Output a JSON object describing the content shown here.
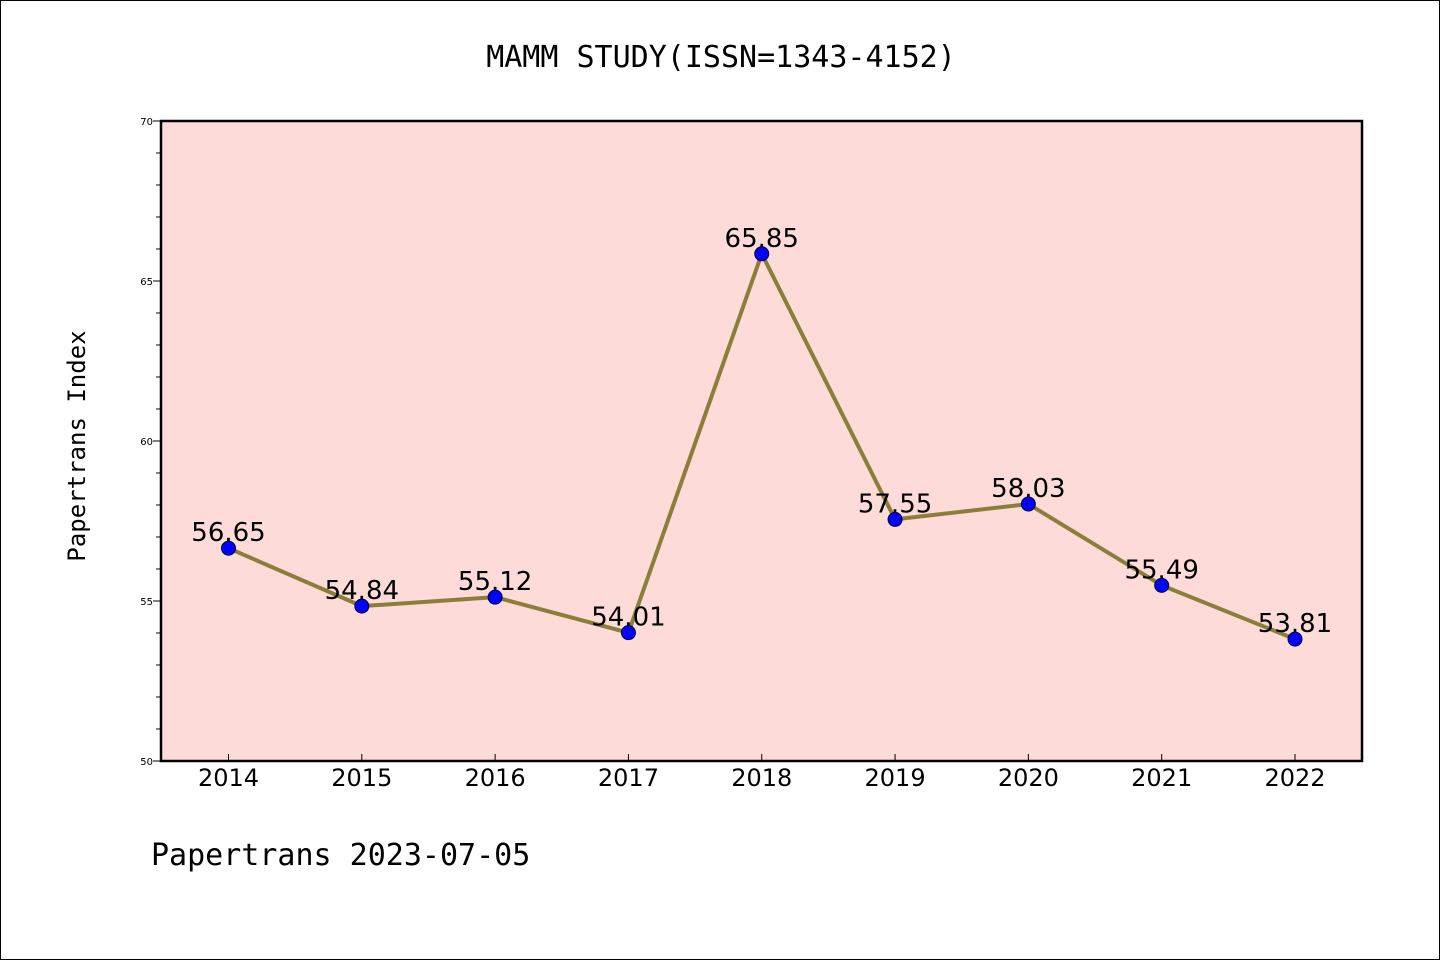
{
  "title": "MAMM STUDY(ISSN=1343-4152)",
  "footer": "Papertrans 2023-07-05",
  "colors": {
    "plot_background": "#fddbd8",
    "line": "#8b7d3a",
    "marker": "#0000ff",
    "marker_edge": "#000033"
  },
  "chart_data": {
    "type": "line",
    "title": "MAMM STUDY(ISSN=1343-4152)",
    "xlabel": "",
    "ylabel": "Papertrans Index",
    "categories": [
      "2014",
      "2015",
      "2016",
      "2017",
      "2018",
      "2019",
      "2020",
      "2021",
      "2022"
    ],
    "series": [
      {
        "values": [
          56.65,
          54.84,
          55.12,
          54.01,
          65.85,
          57.55,
          58.03,
          55.49,
          53.81
        ],
        "labels": [
          "56.65",
          "54.84",
          "55.12",
          "54.01",
          "65.85",
          "57.55",
          "58.03",
          "55.49",
          "53.81"
        ]
      }
    ],
    "ylim": [
      50,
      70
    ],
    "yticks": [
      "50",
      "55",
      "60",
      "65",
      "70"
    ],
    "grid": false,
    "legend": "none"
  }
}
